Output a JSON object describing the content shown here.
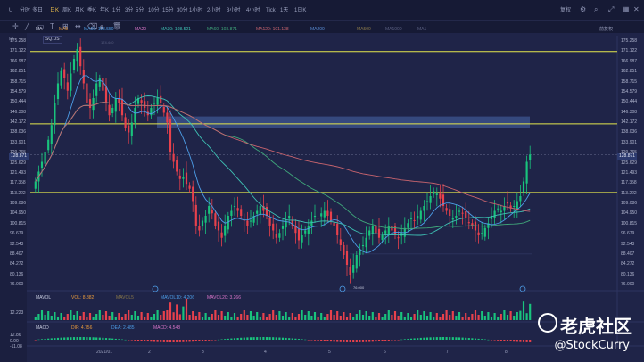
{
  "toolbar": {
    "tabs": [
      "U",
      "分时",
      "多日",
      "日K",
      "周K",
      "月K",
      "季K",
      "年K",
      "1分",
      "3分",
      "5分",
      "10分",
      "15分",
      "30分",
      "1小时",
      "2小时",
      "3小时",
      "4小时",
      "Tick",
      "1天",
      "1日K"
    ],
    "active_tab": "日K",
    "right_label": "复权"
  },
  "indicators": {
    "ma_title": "MA",
    "ma5": "MA5",
    "ma10": "MA10: 113.550",
    "ma20": "MA20",
    "ma30": "MA30: 108.521",
    "ma60": "MA60: 103.871",
    "ma120": "MA120: 101.138",
    "ma200": "MA200",
    "ma_more1": "MA500",
    "ma_more2": "MA1000",
    "ma_more3": "MA1",
    "right_button": "前复权",
    "peak_label": "174.440",
    "low_label": "76.000",
    "symbol": "SQ.US"
  },
  "colors": {
    "up": "#19c37d",
    "down": "#e8414c",
    "hline": "#e5e84c",
    "zone": "#3e5590",
    "ma10": "#4d9ee8",
    "ma30": "#3ec1b4",
    "ma60": "#3fa67a",
    "ma120": "#c8646e"
  },
  "price_axis": [
    "175.258",
    "171.122",
    "166.987",
    "162.851",
    "158.715",
    "154.579",
    "150.444",
    "146.308",
    "142.172",
    "138.036",
    "133.901",
    "129.765",
    "125.629",
    "121.493",
    "117.358",
    "113.222",
    "109.086",
    "104.950",
    "100.815",
    "96.679",
    "92.543",
    "88.407",
    "84.272",
    "80.136",
    "76.000"
  ],
  "current_price": "128.871",
  "date_axis": [
    "2021/01",
    "2",
    "3",
    "4",
    "5",
    "6",
    "7",
    "8"
  ],
  "volume_panel": {
    "title": "MAVOL",
    "vol": "VOL: 8.882",
    "mavol5": "MAVOL5",
    "mavol10": "MAVOL10: 4.206",
    "mavol20": "MAVOL20: 3.266",
    "axis_top": "12.223"
  },
  "macd_panel": {
    "title": "MACD",
    "dif": "DIF: 4.756",
    "dea": "DEA: 2.485",
    "macd": "MACD: 4.548",
    "axis": [
      "12.86",
      "0.00",
      "-11.08"
    ]
  },
  "watermark": {
    "brand": "老虎社区",
    "handle": "@StockCurry"
  },
  "chart_data": {
    "type": "candlestick",
    "ylim": [
      76.0,
      175.258
    ],
    "horizontal_levels": [
      171.0,
      141.5,
      113.5
    ],
    "highlight_zone": [
      144.5,
      139.8
    ],
    "closes": [
      118,
      122,
      126,
      130,
      135,
      141,
      150,
      158,
      163,
      160,
      155,
      162,
      168,
      172,
      165,
      158,
      150,
      148,
      152,
      158,
      160,
      155,
      150,
      145,
      148,
      152,
      150,
      145,
      140,
      138,
      142,
      148,
      152,
      150,
      148,
      145,
      148,
      150,
      152,
      150,
      146,
      142,
      130,
      126,
      122,
      119,
      120,
      117,
      115,
      110,
      100,
      98,
      102,
      104,
      108,
      105,
      100,
      98,
      95,
      100,
      104,
      106,
      108,
      106,
      104,
      102,
      100,
      102,
      104,
      106,
      108,
      106,
      104,
      100,
      98,
      95,
      97,
      100,
      102,
      104,
      100,
      97,
      94,
      96,
      98,
      100,
      102,
      104,
      103,
      105,
      106,
      104,
      102,
      100,
      96,
      92,
      88,
      84,
      80,
      84,
      88,
      90,
      92,
      95,
      98,
      100,
      97,
      95,
      96,
      98,
      100,
      98,
      96,
      95,
      97,
      99,
      101,
      103,
      102,
      104,
      106,
      108,
      110,
      112,
      114,
      113,
      111,
      108,
      106,
      104,
      103,
      104,
      106,
      105,
      103,
      101,
      100,
      98,
      96,
      97,
      99,
      101,
      104,
      106,
      107,
      106,
      108,
      109,
      107,
      108,
      110,
      112,
      118,
      126,
      129
    ]
  }
}
